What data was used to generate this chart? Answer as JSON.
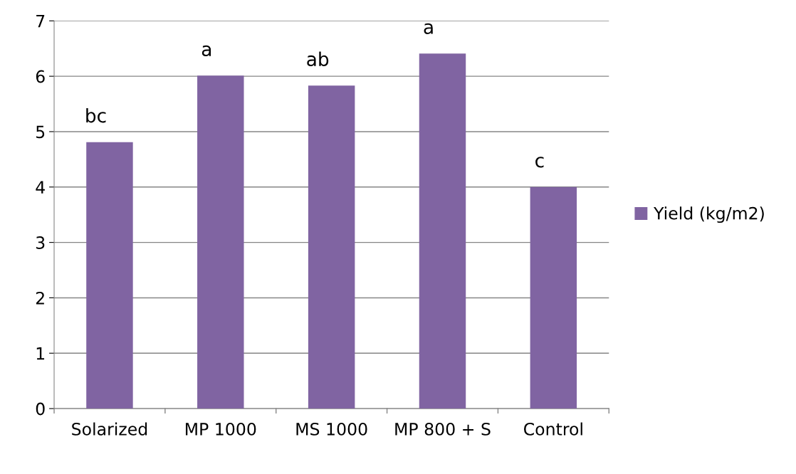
{
  "chart_data": {
    "type": "bar",
    "categories": [
      "Solarized",
      "MP 1000",
      "MS 1000",
      "MP 800 + S",
      "Control"
    ],
    "series": [
      {
        "name": "Yield (kg/m2)",
        "color": "#8064a2",
        "values": [
          4.81,
          6.01,
          5.83,
          6.41,
          4.0
        ]
      }
    ],
    "ylim": [
      0,
      7
    ],
    "yticks": [
      0,
      1,
      2,
      3,
      4,
      5,
      6,
      7
    ],
    "grid": "y",
    "legend": "right",
    "annotations": [
      {
        "text": "bc",
        "x": "Solarized",
        "y": 4.81
      },
      {
        "text": "a",
        "x": "MP 1000",
        "y": 6.01
      },
      {
        "text": "ab",
        "x": "MS 1000",
        "y": 5.83
      },
      {
        "text": "a",
        "x": "MP 800 + S",
        "y": 6.41
      },
      {
        "text": "c",
        "x": "Control",
        "y": 4.0
      }
    ]
  }
}
